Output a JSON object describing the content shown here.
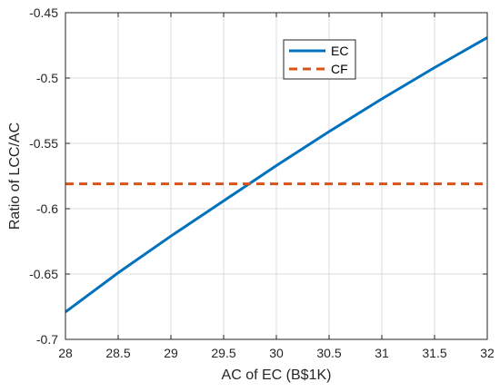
{
  "chart_data": {
    "type": "line",
    "xlabel": "AC of EC (B$1K)",
    "ylabel": "Ratio of LCC/AC",
    "xlim": [
      28,
      32
    ],
    "ylim": [
      -0.7,
      -0.45
    ],
    "xticks": [
      "28",
      "28.5",
      "29",
      "29.5",
      "30",
      "30.5",
      "31",
      "31.5",
      "32"
    ],
    "yticks": [
      "-0.45",
      "-0.5",
      "-0.55",
      "-0.6",
      "-0.65",
      "-0.7"
    ],
    "grid": true,
    "legend_position": "top-center",
    "series": [
      {
        "name": "EC",
        "style": "solid",
        "color": "#0072BD",
        "x": [
          28,
          28.5,
          29,
          29.5,
          30,
          30.5,
          31,
          31.5,
          32
        ],
        "y": [
          -0.679,
          -0.649,
          -0.621,
          -0.594,
          -0.567,
          -0.541,
          -0.516,
          -0.492,
          -0.469
        ]
      },
      {
        "name": "CF",
        "style": "dashed",
        "color": "#D95319",
        "x": [
          28,
          32
        ],
        "y": [
          -0.581,
          -0.581
        ]
      }
    ]
  }
}
